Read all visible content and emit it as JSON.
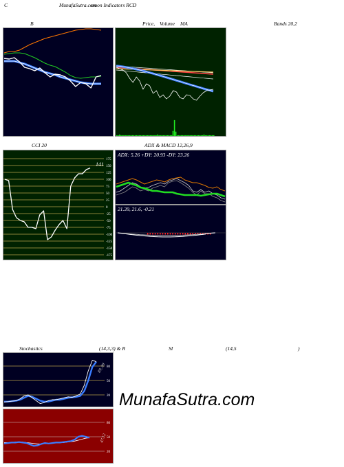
{
  "header": {
    "corner": "C",
    "title": "MunafaSutra.com",
    "subtitle": "omon Indicators RCD"
  },
  "labels": {
    "bollinger_left": "B",
    "price_ma": "Price,",
    "volume": "Volume",
    "ma": "MA",
    "bands": "Bands 20,2",
    "cci": "CCI 20",
    "adx_macd": "ADX  & MACD 12,26,9",
    "stoch": "Stochastics",
    "stoch_params": "(14,3,3) & R",
    "rsi": "SI",
    "rsi_params": "(14,5",
    "rsi_close": ")"
  },
  "watermark": "MunafaSutra.com",
  "colors": {
    "dark_bg": "#000022",
    "green_bg": "#002200",
    "red_bg": "#8b0000",
    "blue_line": "#3a7dff",
    "green_line": "#22dd22"
  },
  "chart_data": [
    {
      "type": "line",
      "panel": "bollinger",
      "x": [
        1,
        2,
        3,
        4,
        5,
        6,
        7,
        8,
        9,
        10,
        11,
        12,
        13,
        14,
        15,
        16,
        17,
        18,
        19,
        20
      ],
      "series": [
        {
          "values": [
            84,
            85,
            83,
            82,
            88,
            94,
            96,
            100,
            98,
            99,
            104,
            108,
            110,
            115,
            118,
            120,
            123,
            125,
            120,
            118
          ]
        },
        {
          "values": [
            86,
            86,
            86,
            88,
            90,
            93,
            96,
            99,
            102,
            104,
            106,
            109,
            111,
            113,
            115,
            117,
            118,
            119,
            119,
            119
          ]
        },
        {
          "values": [
            79,
            78,
            77,
            77,
            78,
            81,
            84,
            88,
            92,
            95,
            97,
            101,
            105,
            110,
            113,
            114,
            113,
            112,
            112,
            111
          ]
        },
        {
          "values": [
            93,
            95,
            95,
            97,
            101,
            105,
            108,
            111,
            114,
            116,
            118,
            120,
            122,
            124,
            126,
            127,
            128,
            128,
            127,
            126
          ]
        },
        {
          "values": [
            85,
            86,
            84,
            90,
            98,
            100,
            103,
            99,
            106,
            112,
            108,
            109,
            112,
            118,
            126,
            120,
            122,
            128,
            112,
            110
          ]
        }
      ]
    },
    {
      "type": "bar",
      "panel": "price_volume",
      "values": [
        1,
        1,
        2,
        1,
        1,
        1,
        1,
        1,
        1,
        1,
        1,
        1,
        1,
        1,
        1,
        1,
        1,
        1,
        1,
        1,
        1,
        1,
        1,
        1,
        1,
        1,
        1,
        1,
        1,
        2,
        1,
        1,
        1,
        1,
        1,
        1,
        1,
        1,
        1,
        1,
        7,
        22,
        6,
        1,
        1,
        1,
        1,
        1,
        1,
        1,
        1,
        1,
        1,
        1,
        1,
        1,
        1,
        1,
        1,
        1,
        1,
        1,
        2,
        1,
        1,
        1,
        1,
        1,
        1,
        1
      ]
    },
    {
      "type": "line",
      "panel": "cci",
      "ylim": [
        -175,
        175
      ],
      "yticks": [
        175,
        150,
        125,
        100,
        75,
        50,
        25,
        0,
        -25,
        -50,
        -75,
        -100,
        -125,
        -150,
        -175
      ],
      "x": [
        1,
        2,
        3,
        4,
        5,
        6,
        7,
        8,
        9,
        10,
        11,
        12,
        13,
        14,
        15,
        16,
        17,
        18,
        19,
        20,
        21,
        22,
        23
      ],
      "values": [
        100,
        95,
        -10,
        -40,
        -50,
        -55,
        -75,
        -75,
        -80,
        -30,
        -15,
        -120,
        -110,
        -85,
        -65,
        -50,
        -80,
        75,
        105,
        120,
        120,
        135,
        141
      ],
      "annotation": "141"
    },
    {
      "type": "line",
      "panel": "adx",
      "title": "ADX: 5.26  +DY: 20.93 -DY: 23.26",
      "values": [
        {
          "adx": 5.26,
          "plus_dy": 20.93,
          "minus_dy": 23.26
        }
      ]
    },
    {
      "type": "line",
      "panel": "macd",
      "title": "21.39,  21.6,  -0.21",
      "values": {
        "macd": 21.39,
        "signal": 21.6,
        "histogram": -0.21
      }
    },
    {
      "type": "line",
      "panel": "stochastics",
      "ylim": [
        0,
        100
      ],
      "yticks": [
        80,
        50,
        20
      ],
      "annotation": "89, 89"
    },
    {
      "type": "line",
      "panel": "rsi",
      "ylim": [
        0,
        100
      ],
      "yticks": [
        80,
        50,
        20
      ],
      "annotation": "47.12"
    }
  ]
}
